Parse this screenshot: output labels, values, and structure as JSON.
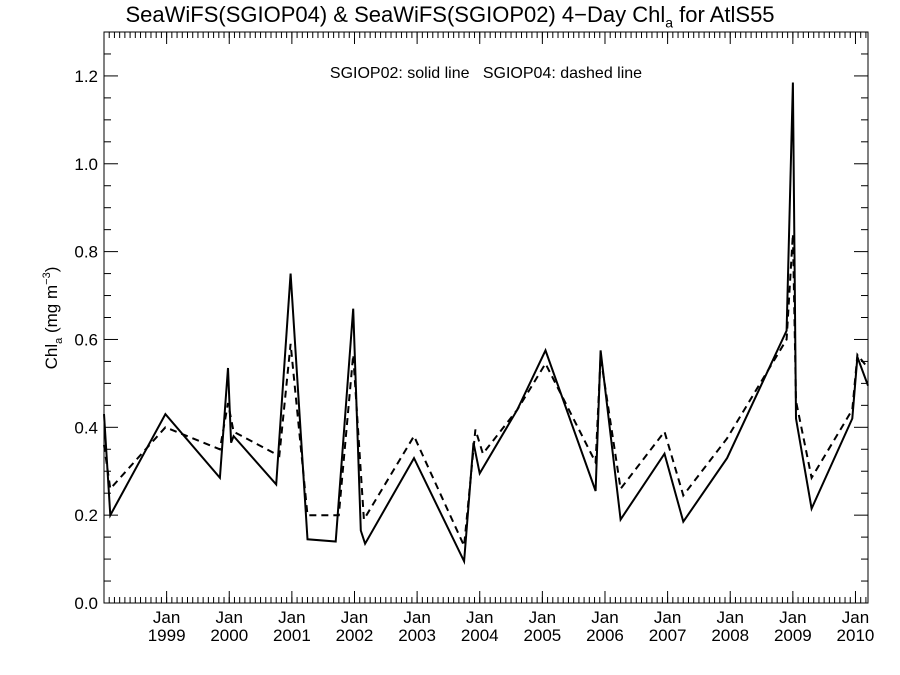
{
  "chart_data": {
    "type": "line",
    "title_prefix": "SeaWiFS(SGIOP04) & SeaWiFS(SGIOP02) 4−Day Chl",
    "title_sub": "a",
    "title_suffix": " for AtlS55",
    "ylabel_main": "Chl",
    "ylabel_sub": "a",
    "ylabel_unit": " (mg m",
    "ylabel_sup": "−3",
    "ylabel_close": ")",
    "legend_text": "SGIOP02: solid line   SGIOP04: dashed line",
    "ylim": [
      0.0,
      1.3
    ],
    "xlim": [
      1998.0,
      2010.2
    ],
    "yticks": [
      {
        "value": 0.0,
        "label": "0.0"
      },
      {
        "value": 0.2,
        "label": "0.2"
      },
      {
        "value": 0.4,
        "label": "0.4"
      },
      {
        "value": 0.6,
        "label": "0.6"
      },
      {
        "value": 0.8,
        "label": "0.8"
      },
      {
        "value": 1.0,
        "label": "1.0"
      },
      {
        "value": 1.2,
        "label": "1.2"
      }
    ],
    "xticks": [
      {
        "value": 1999,
        "month": "Jan",
        "year": "1999"
      },
      {
        "value": 2000,
        "month": "Jan",
        "year": "2000"
      },
      {
        "value": 2001,
        "month": "Jan",
        "year": "2001"
      },
      {
        "value": 2002,
        "month": "Jan",
        "year": "2002"
      },
      {
        "value": 2003,
        "month": "Jan",
        "year": "2003"
      },
      {
        "value": 2004,
        "month": "Jan",
        "year": "2004"
      },
      {
        "value": 2005,
        "month": "Jan",
        "year": "2005"
      },
      {
        "value": 2006,
        "month": "Jan",
        "year": "2006"
      },
      {
        "value": 2007,
        "month": "Jan",
        "year": "2007"
      },
      {
        "value": 2008,
        "month": "Jan",
        "year": "2008"
      },
      {
        "value": 2009,
        "month": "Jan",
        "year": "2009"
      },
      {
        "value": 2010,
        "month": "Jan",
        "year": "2010"
      }
    ],
    "series": [
      {
        "name": "SGIOP02",
        "style": "solid",
        "x": [
          1998.0,
          1998.1,
          1998.98,
          1999.85,
          1999.98,
          2000.03,
          2000.07,
          2000.75,
          2000.98,
          2001.25,
          2001.7,
          2001.98,
          2002.1,
          2002.17,
          2002.95,
          2003.75,
          2003.9,
          2004.0,
          2004.6,
          2005.05,
          2005.85,
          2005.93,
          2006.25,
          2006.95,
          2007.25,
          2007.95,
          2008.9,
          2009.0,
          2009.05,
          2009.3,
          2009.95,
          2010.03,
          2010.2
        ],
        "y": [
          0.43,
          0.2,
          0.43,
          0.285,
          0.535,
          0.365,
          0.38,
          0.27,
          0.75,
          0.145,
          0.14,
          0.67,
          0.165,
          0.135,
          0.33,
          0.095,
          0.365,
          0.295,
          0.44,
          0.575,
          0.255,
          0.575,
          0.19,
          0.34,
          0.185,
          0.33,
          0.62,
          1.185,
          0.42,
          0.215,
          0.42,
          0.56,
          0.495
        ]
      },
      {
        "name": "SGIOP04",
        "style": "dashed",
        "x": [
          1998.0,
          1998.1,
          1998.98,
          1999.85,
          1999.98,
          2000.07,
          2000.8,
          2000.98,
          2001.25,
          2001.75,
          2001.98,
          2002.15,
          2002.95,
          2003.75,
          2003.93,
          2004.05,
          2004.6,
          2005.05,
          2005.85,
          2005.93,
          2006.25,
          2006.95,
          2007.25,
          2007.95,
          2008.9,
          2009.0,
          2009.05,
          2009.3,
          2009.95,
          2010.03,
          2010.2
        ],
        "y": [
          0.36,
          0.26,
          0.4,
          0.35,
          0.455,
          0.39,
          0.335,
          0.59,
          0.2,
          0.2,
          0.565,
          0.19,
          0.38,
          0.13,
          0.395,
          0.34,
          0.44,
          0.545,
          0.32,
          0.56,
          0.26,
          0.39,
          0.245,
          0.375,
          0.6,
          0.84,
          0.46,
          0.285,
          0.44,
          0.565,
          0.535
        ]
      }
    ],
    "grid": false
  }
}
